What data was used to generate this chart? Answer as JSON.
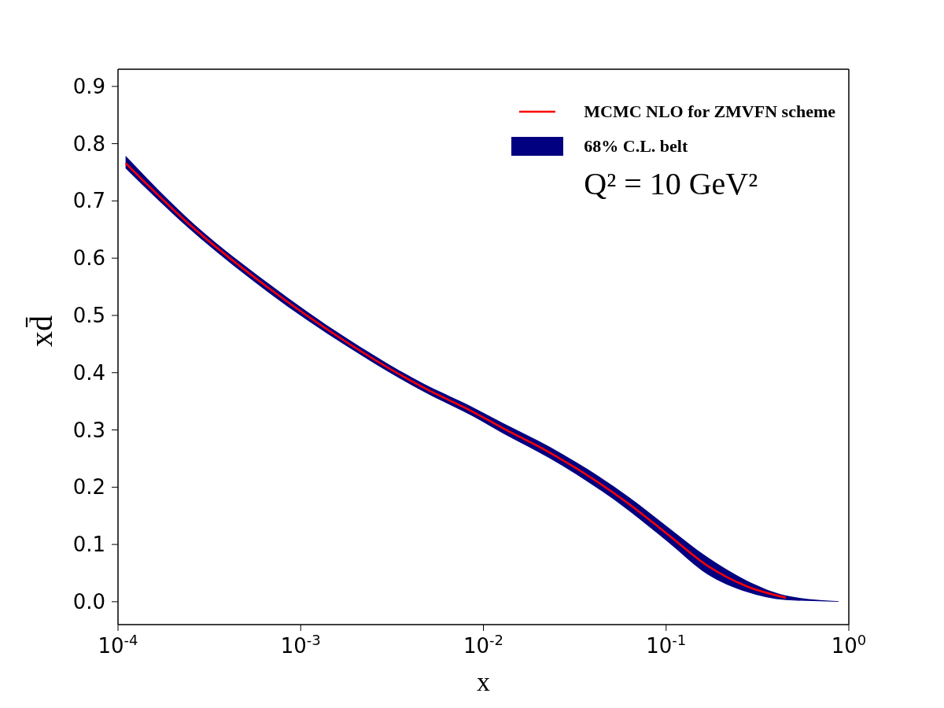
{
  "chart_data": {
    "type": "line",
    "xlabel": "x",
    "ylabel": "xd̄",
    "log": "x",
    "grid": false,
    "legend": "top right",
    "marker": "none",
    "line_style": "solid",
    "xlim": [
      0.0001,
      1
    ],
    "xticks": [
      {
        "value": 0.0001,
        "label": "10$^{-4}$"
      },
      {
        "value": 0.001,
        "label": "10$^{-3}$"
      },
      {
        "value": 0.01,
        "label": "10$^{-2}$"
      },
      {
        "value": 0.1,
        "label": "10$^{-1}$"
      },
      {
        "value": 1,
        "label": "10$^{0}$"
      }
    ],
    "ylim": [
      -0.04,
      0.93
    ],
    "yticks": [
      {
        "value": 0,
        "label": "0.0"
      },
      {
        "value": 0.1,
        "label": "0.1"
      },
      {
        "value": 0.2,
        "label": "0.2"
      },
      {
        "value": 0.3,
        "label": "0.3"
      },
      {
        "value": 0.4,
        "label": "0.4"
      },
      {
        "value": 0.5,
        "label": "0.5"
      },
      {
        "value": 0.6,
        "label": "0.6"
      },
      {
        "value": 0.7,
        "label": "0.7"
      },
      {
        "value": 0.8,
        "label": "0.8"
      },
      {
        "value": 0.9,
        "label": "0.9"
      }
    ],
    "annotations": [
      "Q² = 10 GeV²"
    ],
    "series": [
      {
        "name": "MCMC NLO for ZMVFN scheme",
        "color": "#ff0000",
        "x": [
          0.00011,
          0.000244,
          0.00066,
          0.00177,
          0.00476,
          0.0086,
          0.0128,
          0.0232,
          0.0625,
          0.1026,
          0.168,
          0.276,
          0.453
        ],
        "values": [
          0.766,
          0.66,
          0.549,
          0.454,
          0.373,
          0.333,
          0.303,
          0.26,
          0.171,
          0.117,
          0.063,
          0.027,
          0.007
        ]
      },
      {
        "name": "68% C.L. belt",
        "color": "#000080",
        "x": [
          0.00011,
          0.000244,
          0.00066,
          0.00177,
          0.00476,
          0.0086,
          0.0128,
          0.0232,
          0.0625,
          0.1026,
          0.168,
          0.276,
          0.453,
          0.88
        ],
        "values": [
          null,
          null,
          null,
          null,
          null,
          null,
          null,
          null,
          null,
          null,
          null,
          null,
          null,
          null
        ],
        "lower": [
          0.757,
          0.652,
          0.541,
          0.447,
          0.366,
          0.325,
          0.294,
          0.25,
          0.159,
          0.104,
          0.048,
          0.017,
          0.003,
          0
        ],
        "upper": [
          0.779,
          0.668,
          0.557,
          0.461,
          0.38,
          0.341,
          0.312,
          0.27,
          0.183,
          0.13,
          0.078,
          0.037,
          0.011,
          0.001
        ]
      }
    ]
  }
}
